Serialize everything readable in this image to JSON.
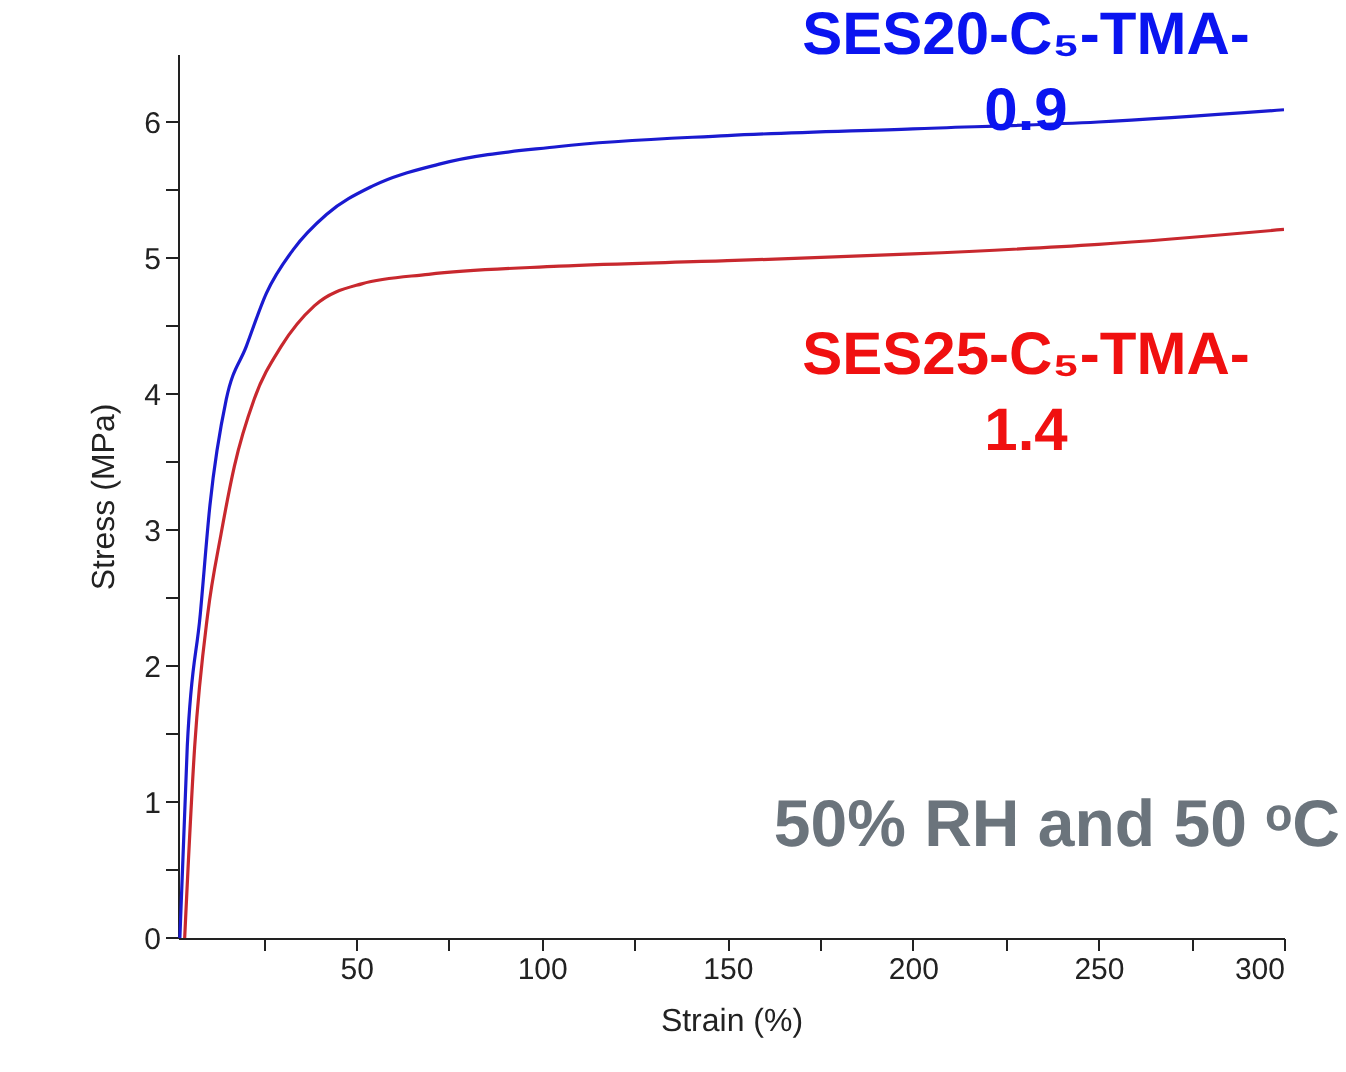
{
  "chart_data": {
    "type": "line",
    "xlabel": "Strain (%)",
    "ylabel": "Stress (MPa)",
    "xlim": [
      2,
      300
    ],
    "ylim": [
      0,
      6.5
    ],
    "xticks": [
      {
        "value": 25,
        "label": null
      },
      50,
      {
        "value": 75,
        "label": null
      },
      100,
      {
        "value": 125,
        "label": null
      },
      150,
      {
        "value": 175,
        "label": null
      },
      200,
      {
        "value": 225,
        "label": null
      },
      250,
      {
        "value": 275,
        "label": null
      },
      300
    ],
    "yticks": [
      0,
      {
        "value": 0.5,
        "label": null
      },
      1,
      {
        "value": 1.5,
        "label": null
      },
      2,
      {
        "value": 2.5,
        "label": null
      },
      3,
      {
        "value": 3.5,
        "label": null
      },
      4,
      {
        "value": 4.5,
        "label": null
      },
      5,
      {
        "value": 5.5,
        "label": null
      },
      6
    ],
    "grid": false,
    "legend": false,
    "line_style": "solid",
    "marker": "none",
    "series": [
      {
        "name": "SES20-C₅-TMA-0.9",
        "color": "#1a1ad0",
        "x": [
          2.5,
          4.5,
          8,
          10.6,
          15,
          20.4,
          25.8,
          33,
          42,
          54.5,
          72.4,
          104.7,
          150,
          200,
          250,
          300
        ],
        "values": [
          0,
          1.41,
          2.38,
          3.18,
          3.96,
          4.35,
          4.74,
          5.06,
          5.32,
          5.53,
          5.69,
          5.82,
          5.9,
          5.95,
          6.0,
          6.09
        ]
      },
      {
        "name": "SES25-C₅-TMA-1.4",
        "color": "#c8282e",
        "x": [
          3.8,
          6.5,
          10,
          13.6,
          17.2,
          22.5,
          29.8,
          38.8,
          51.5,
          69.5,
          104.7,
          150,
          200,
          250,
          300
        ],
        "values": [
          0,
          1.41,
          2.38,
          2.97,
          3.47,
          3.96,
          4.35,
          4.65,
          4.81,
          4.88,
          4.94,
          4.98,
          5.03,
          5.1,
          5.21
        ]
      }
    ],
    "annotations": [
      "50% RH and 50 ᵒC"
    ]
  }
}
